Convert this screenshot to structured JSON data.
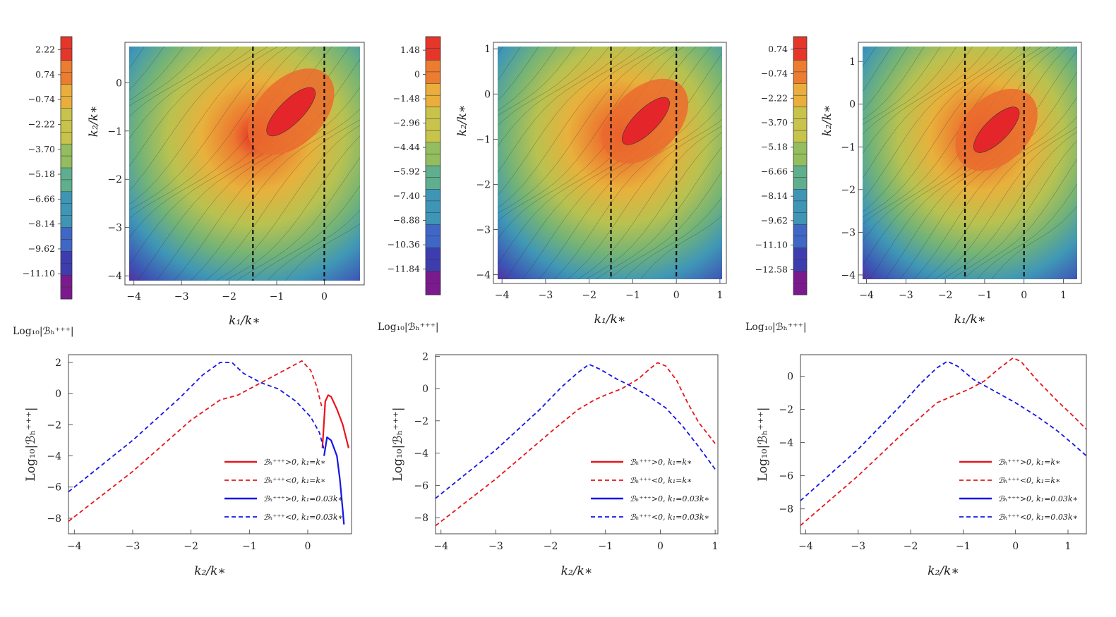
{
  "chart_data": [
    {
      "type": "heatmap",
      "panel": "top-left",
      "xlabel": "k₁/k∗",
      "ylabel": "k₂/k∗",
      "xlim": [
        -4.1,
        0.75
      ],
      "ylim": [
        -4.1,
        0.75
      ],
      "xticks": [
        "-4",
        "-3",
        "-2",
        "-1",
        "0"
      ],
      "yticks": [
        "-4",
        "-3",
        "-2",
        "-1",
        "0"
      ],
      "dashed_lines_x": [
        -1.5,
        0.0
      ],
      "colorbar": {
        "label": "Log₁₀|ℬₕ⁺⁺⁺|",
        "ticks": [
          "2.22",
          "0.74",
          "-0.74",
          "-2.22",
          "-3.70",
          "-5.18",
          "-6.66",
          "-8.14",
          "-9.62",
          "-11.10"
        ],
        "range": [
          -12.6,
          3.0
        ]
      }
    },
    {
      "type": "heatmap",
      "panel": "top-middle",
      "xlabel": "k₁/k∗",
      "ylabel": "k₂/k∗",
      "xlim": [
        -4.1,
        1.05
      ],
      "ylim": [
        -4.1,
        1.05
      ],
      "xticks": [
        "-4",
        "-3",
        "-2",
        "-1",
        "0",
        "1"
      ],
      "yticks": [
        "-4",
        "-3",
        "-2",
        "-1",
        "0",
        "1"
      ],
      "dashed_lines_x": [
        -1.5,
        0.0
      ],
      "colorbar": {
        "label": "Log₁₀|ℬₕ⁺⁺⁺|",
        "ticks": [
          "1.48",
          "0",
          "-1.48",
          "-2.96",
          "-4.44",
          "-5.92",
          "-7.40",
          "-8.88",
          "-10.36",
          "-11.84"
        ],
        "range": [
          -13.4,
          2.3
        ]
      }
    },
    {
      "type": "heatmap",
      "panel": "top-right",
      "xlabel": "k₁/k∗",
      "ylabel": "k₂/k∗",
      "xlim": [
        -4.1,
        1.35
      ],
      "ylim": [
        -4.1,
        1.35
      ],
      "xticks": [
        "-4",
        "-3",
        "-2",
        "-1",
        "0",
        "1"
      ],
      "yticks": [
        "-4",
        "-3",
        "-2",
        "-1",
        "0",
        "1"
      ],
      "dashed_lines_x": [
        -1.5,
        0.0
      ],
      "colorbar": {
        "label": "Log₁₀|ℬₕ⁺⁺⁺|",
        "ticks": [
          "0.74",
          "-0.74",
          "-2.22",
          "-3.70",
          "-5.18",
          "-6.66",
          "-8.14",
          "-9.62",
          "-11.10",
          "-12.58"
        ],
        "range": [
          -14.1,
          1.5
        ]
      }
    },
    {
      "type": "line",
      "panel": "bottom-left",
      "xlabel": "k₂/k∗",
      "ylabel": "Log₁₀|ℬₕ⁺⁺⁺|",
      "xlim": [
        -4.1,
        0.75
      ],
      "ylim": [
        -9.0,
        2.5
      ],
      "xticks": [
        "-4",
        "-3",
        "-2",
        "-1",
        "0"
      ],
      "yticks": [
        "-8",
        "-6",
        "-4",
        "-2",
        "0",
        "2"
      ],
      "series": [
        {
          "name": "ℬₕ⁺⁺⁺>0, k₁=k∗",
          "color": "#e8141b",
          "dash": false,
          "x": [
            0.25,
            0.3,
            0.35,
            0.4,
            0.5,
            0.6,
            0.7
          ],
          "y": [
            -3.5,
            -0.5,
            -0.1,
            -0.2,
            -1.0,
            -2.0,
            -3.5
          ]
        },
        {
          "name": "ℬₕ⁺⁺⁺<0, k₁=k∗",
          "color": "#e8141b",
          "dash": true,
          "x": [
            -4.1,
            -3,
            -2,
            -1.5,
            -1.2,
            -1,
            -0.7,
            -0.4,
            -0.1,
            0.05,
            0.15,
            0.25
          ],
          "y": [
            -8.2,
            -5.0,
            -1.7,
            -0.4,
            -0.1,
            0.3,
            0.9,
            1.5,
            2.1,
            1.5,
            0.5,
            -1.0
          ]
        },
        {
          "name": "ℬₕ⁺⁺⁺>0, k₁=0.03k∗",
          "color": "#1616e6",
          "dash": false,
          "x": [
            0.28,
            0.33,
            0.4,
            0.5,
            0.55,
            0.6,
            0.62
          ],
          "y": [
            -4.0,
            -2.8,
            -3.0,
            -4.0,
            -5.5,
            -7.5,
            -8.4
          ]
        },
        {
          "name": "ℬₕ⁺⁺⁺<0, k₁=0.03k∗",
          "color": "#1616e6",
          "dash": true,
          "x": [
            -4.1,
            -3,
            -2.2,
            -1.8,
            -1.5,
            -1.3,
            -1.1,
            -0.8,
            -0.5,
            -0.2,
            0.05,
            0.2,
            0.28
          ],
          "y": [
            -6.3,
            -3.0,
            -0.3,
            1.2,
            2.0,
            2.0,
            1.3,
            0.7,
            0.3,
            -0.5,
            -1.5,
            -2.5,
            -3.6
          ]
        }
      ],
      "legend": "bottom-right"
    },
    {
      "type": "line",
      "panel": "bottom-middle",
      "xlabel": "k₂/k∗",
      "ylabel": "Log₁₀|ℬₕ⁺⁺⁺|",
      "xlim": [
        -4.1,
        1.05
      ],
      "ylim": [
        -9.0,
        2.1
      ],
      "xticks": [
        "-4",
        "-3",
        "-2",
        "-1",
        "0",
        "1"
      ],
      "yticks": [
        "-8",
        "-6",
        "-4",
        "-2",
        "0",
        "2"
      ],
      "series": [
        {
          "name": "ℬₕ⁺⁺⁺>0, k₁=k∗",
          "color": "#e8141b",
          "dash": false,
          "x": [],
          "y": []
        },
        {
          "name": "ℬₕ⁺⁺⁺<0, k₁=k∗",
          "color": "#e8141b",
          "dash": true,
          "x": [
            -4.1,
            -3,
            -2,
            -1.5,
            -1.2,
            -1,
            -0.7,
            -0.4,
            -0.2,
            -0.05,
            0.1,
            0.3,
            0.5,
            0.7,
            1.0
          ],
          "y": [
            -8.5,
            -5.6,
            -2.7,
            -1.3,
            -0.7,
            -0.4,
            0.0,
            0.6,
            1.2,
            1.6,
            1.4,
            0.5,
            -0.9,
            -2.1,
            -3.4
          ]
        },
        {
          "name": "ℬₕ⁺⁺⁺>0, k₁=0.03k∗",
          "color": "#1616e6",
          "dash": false,
          "x": [],
          "y": []
        },
        {
          "name": "ℬₕ⁺⁺⁺<0, k₁=0.03k∗",
          "color": "#1616e6",
          "dash": true,
          "x": [
            -4.1,
            -3,
            -2.2,
            -1.8,
            -1.5,
            -1.3,
            -1.1,
            -0.8,
            -0.5,
            -0.2,
            0.1,
            0.4,
            0.7,
            1.0
          ],
          "y": [
            -6.8,
            -3.8,
            -1.3,
            0.1,
            1.0,
            1.5,
            1.2,
            0.6,
            0.1,
            -0.5,
            -1.2,
            -2.3,
            -3.6,
            -5.0
          ]
        }
      ],
      "legend": "bottom-right"
    },
    {
      "type": "line",
      "panel": "bottom-right",
      "xlabel": "k₂/k∗",
      "ylabel": "Log₁₀|ℬₕ⁺⁺⁺|",
      "xlim": [
        -4.1,
        1.35
      ],
      "ylim": [
        -9.5,
        1.3
      ],
      "xticks": [
        "-4",
        "-3",
        "-2",
        "-1",
        "0",
        "1"
      ],
      "yticks": [
        "-8",
        "-6",
        "-4",
        "-2",
        "0"
      ],
      "series": [
        {
          "name": "ℬₕ⁺⁺⁺>0, k₁=k∗",
          "color": "#e8141b",
          "dash": false,
          "x": [],
          "y": []
        },
        {
          "name": "ℬₕ⁺⁺⁺<0, k₁=k∗",
          "color": "#e8141b",
          "dash": true,
          "x": [
            -4.1,
            -3,
            -2,
            -1.5,
            -1.2,
            -0.9,
            -0.6,
            -0.3,
            -0.05,
            0.1,
            0.4,
            0.8,
            1.1,
            1.35
          ],
          "y": [
            -9.0,
            -6.0,
            -3.0,
            -1.6,
            -1.2,
            -0.8,
            -0.3,
            0.5,
            1.1,
            0.9,
            -0.2,
            -1.5,
            -2.4,
            -3.2
          ]
        },
        {
          "name": "ℬₕ⁺⁺⁺>0, k₁=0.03k∗",
          "color": "#1616e6",
          "dash": false,
          "x": [],
          "y": []
        },
        {
          "name": "ℬₕ⁺⁺⁺<0, k₁=0.03k∗",
          "color": "#1616e6",
          "dash": true,
          "x": [
            -4.1,
            -3,
            -2.2,
            -1.8,
            -1.5,
            -1.3,
            -1.1,
            -0.8,
            -0.4,
            0.0,
            0.4,
            0.8,
            1.1,
            1.35
          ],
          "y": [
            -7.5,
            -4.4,
            -1.8,
            -0.4,
            0.5,
            0.9,
            0.6,
            -0.2,
            -0.9,
            -1.6,
            -2.4,
            -3.3,
            -4.1,
            -4.8
          ]
        }
      ],
      "legend": "bottom-right"
    }
  ]
}
